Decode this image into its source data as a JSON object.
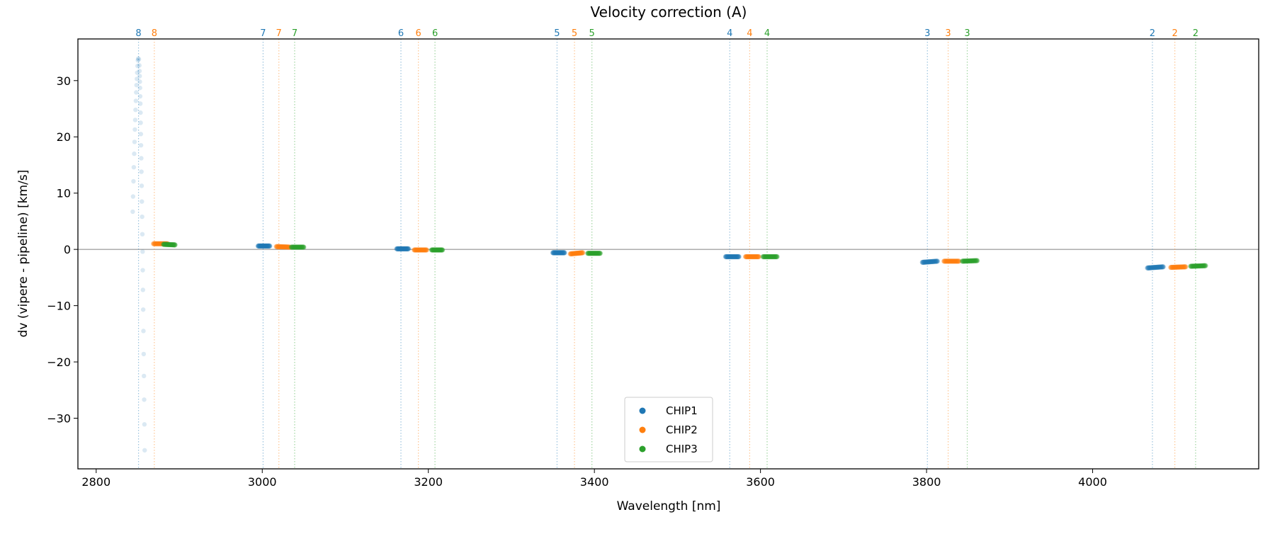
{
  "chart_data": {
    "type": "scatter",
    "title": "Velocity correction (A)",
    "xlabel": "Wavelength [nm]",
    "ylabel": "dv (vipere - pipeline) [km/s]",
    "xlim": [
      2778,
      4200
    ],
    "ylim": [
      -39.0,
      37.4
    ],
    "xticks": [
      2800,
      3000,
      3200,
      3400,
      3600,
      3800,
      4000
    ],
    "yticks": [
      -30,
      -20,
      -10,
      0,
      10,
      20,
      30
    ],
    "grid": false,
    "zero_line": 0,
    "legend": {
      "placement": "lower-center",
      "entries": [
        "CHIP1",
        "CHIP2",
        "CHIP3"
      ]
    },
    "colors": {
      "CHIP1": "#1f77b4",
      "CHIP2": "#ff7f0e",
      "CHIP3": "#2ca02c"
    },
    "order_lines": [
      {
        "order": "8",
        "chip": "CHIP1",
        "x": 2851
      },
      {
        "order": "8",
        "chip": "CHIP2",
        "x": 2870
      },
      {
        "order": "7",
        "chip": "CHIP1",
        "x": 3001
      },
      {
        "order": "7",
        "chip": "CHIP2",
        "x": 3020
      },
      {
        "order": "7",
        "chip": "CHIP3",
        "x": 3039
      },
      {
        "order": "6",
        "chip": "CHIP1",
        "x": 3167
      },
      {
        "order": "6",
        "chip": "CHIP2",
        "x": 3188
      },
      {
        "order": "6",
        "chip": "CHIP3",
        "x": 3208
      },
      {
        "order": "5",
        "chip": "CHIP1",
        "x": 3355
      },
      {
        "order": "5",
        "chip": "CHIP2",
        "x": 3376
      },
      {
        "order": "5",
        "chip": "CHIP3",
        "x": 3397
      },
      {
        "order": "4",
        "chip": "CHIP1",
        "x": 3563
      },
      {
        "order": "4",
        "chip": "CHIP2",
        "x": 3587
      },
      {
        "order": "4",
        "chip": "CHIP3",
        "x": 3608
      },
      {
        "order": "3",
        "chip": "CHIP1",
        "x": 3801
      },
      {
        "order": "3",
        "chip": "CHIP2",
        "x": 3826
      },
      {
        "order": "3",
        "chip": "CHIP3",
        "x": 3849
      },
      {
        "order": "2",
        "chip": "CHIP1",
        "x": 4072
      },
      {
        "order": "2",
        "chip": "CHIP2",
        "x": 4099
      },
      {
        "order": "2",
        "chip": "CHIP3",
        "x": 4124
      }
    ],
    "segments": [
      {
        "chip": "CHIP2",
        "order": "8",
        "x": [
          2869,
          2886
        ],
        "y": [
          1.0,
          1.0
        ]
      },
      {
        "chip": "CHIP3",
        "order": "8",
        "x": [
          2881,
          2895
        ],
        "y": [
          0.9,
          0.8
        ]
      },
      {
        "chip": "CHIP1",
        "order": "7",
        "x": [
          2995,
          3009
        ],
        "y": [
          0.6,
          0.6
        ]
      },
      {
        "chip": "CHIP2",
        "order": "7",
        "x": [
          3017,
          3033
        ],
        "y": [
          0.5,
          0.4
        ]
      },
      {
        "chip": "CHIP3",
        "order": "7",
        "x": [
          3035,
          3050
        ],
        "y": [
          0.4,
          0.4
        ]
      },
      {
        "chip": "CHIP1",
        "order": "6",
        "x": [
          3162,
          3176
        ],
        "y": [
          0.1,
          0.1
        ]
      },
      {
        "chip": "CHIP2",
        "order": "6",
        "x": [
          3183,
          3198
        ],
        "y": [
          -0.1,
          -0.1
        ]
      },
      {
        "chip": "CHIP3",
        "order": "6",
        "x": [
          3204,
          3217
        ],
        "y": [
          -0.1,
          -0.1
        ]
      },
      {
        "chip": "CHIP1",
        "order": "5",
        "x": [
          3350,
          3364
        ],
        "y": [
          -0.6,
          -0.6
        ]
      },
      {
        "chip": "CHIP2",
        "order": "5",
        "x": [
          3371,
          3386
        ],
        "y": [
          -0.8,
          -0.6
        ]
      },
      {
        "chip": "CHIP3",
        "order": "5",
        "x": [
          3392,
          3407
        ],
        "y": [
          -0.7,
          -0.7
        ]
      },
      {
        "chip": "CHIP1",
        "order": "4",
        "x": [
          3558,
          3574
        ],
        "y": [
          -1.3,
          -1.3
        ]
      },
      {
        "chip": "CHIP2",
        "order": "4",
        "x": [
          3582,
          3598
        ],
        "y": [
          -1.3,
          -1.3
        ]
      },
      {
        "chip": "CHIP3",
        "order": "4",
        "x": [
          3603,
          3620
        ],
        "y": [
          -1.3,
          -1.3
        ]
      },
      {
        "chip": "CHIP1",
        "order": "3",
        "x": [
          3795,
          3813
        ],
        "y": [
          -2.3,
          -2.1
        ]
      },
      {
        "chip": "CHIP2",
        "order": "3",
        "x": [
          3821,
          3839
        ],
        "y": [
          -2.1,
          -2.1
        ]
      },
      {
        "chip": "CHIP3",
        "order": "3",
        "x": [
          3843,
          3861
        ],
        "y": [
          -2.1,
          -2.0
        ]
      },
      {
        "chip": "CHIP1",
        "order": "2",
        "x": [
          4066,
          4085
        ],
        "y": [
          -3.3,
          -3.1
        ]
      },
      {
        "chip": "CHIP2",
        "order": "2",
        "x": [
          4094,
          4112
        ],
        "y": [
          -3.2,
          -3.1
        ]
      },
      {
        "chip": "CHIP3",
        "order": "2",
        "x": [
          4118,
          4136
        ],
        "y": [
          -3.0,
          -2.9
        ]
      }
    ],
    "scatter_points": {
      "chip": "CHIP1",
      "order": "8",
      "points": [
        [
          2850.5,
          33.9
        ],
        [
          2850.2,
          33.6
        ],
        [
          2849.8,
          32.6
        ],
        [
          2849.4,
          31.4
        ],
        [
          2849.0,
          30.3
        ],
        [
          2848.6,
          29.2
        ],
        [
          2848.2,
          27.9
        ],
        [
          2847.8,
          26.4
        ],
        [
          2847.4,
          24.8
        ],
        [
          2847.0,
          23.0
        ],
        [
          2846.6,
          21.3
        ],
        [
          2846.2,
          19.1
        ],
        [
          2845.8,
          17.0
        ],
        [
          2845.3,
          14.6
        ],
        [
          2844.9,
          12.1
        ],
        [
          2844.4,
          9.4
        ],
        [
          2844.0,
          6.7
        ],
        [
          2851.5,
          33.8
        ],
        [
          2852.0,
          32.7
        ],
        [
          2852.2,
          31.7
        ],
        [
          2852.4,
          30.8
        ],
        [
          2852.6,
          29.8
        ],
        [
          2852.8,
          28.7
        ],
        [
          2853.0,
          27.2
        ],
        [
          2853.2,
          25.9
        ],
        [
          2853.4,
          24.3
        ],
        [
          2853.6,
          22.5
        ],
        [
          2853.8,
          20.5
        ],
        [
          2854.0,
          18.5
        ],
        [
          2854.3,
          16.2
        ],
        [
          2854.5,
          13.8
        ],
        [
          2854.8,
          11.3
        ],
        [
          2855.0,
          8.5
        ],
        [
          2855.3,
          5.8
        ],
        [
          2855.6,
          2.7
        ],
        [
          2855.9,
          -0.4
        ],
        [
          2856.1,
          -3.7
        ],
        [
          2856.3,
          -7.2
        ],
        [
          2856.6,
          -10.7
        ],
        [
          2856.9,
          -14.5
        ],
        [
          2857.2,
          -18.6
        ],
        [
          2857.5,
          -22.5
        ],
        [
          2857.8,
          -26.7
        ],
        [
          2858.1,
          -31.1
        ],
        [
          2858.4,
          -35.7
        ]
      ]
    }
  }
}
